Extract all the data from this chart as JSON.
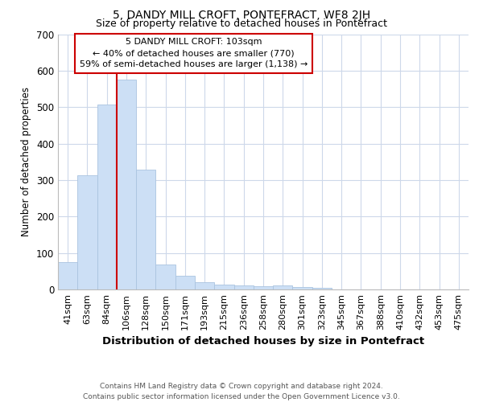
{
  "title": "5, DANDY MILL CROFT, PONTEFRACT, WF8 2JH",
  "subtitle": "Size of property relative to detached houses in Pontefract",
  "xlabel": "Distribution of detached houses by size in Pontefract",
  "ylabel": "Number of detached properties",
  "bar_labels": [
    "41sqm",
    "63sqm",
    "84sqm",
    "106sqm",
    "128sqm",
    "150sqm",
    "171sqm",
    "193sqm",
    "215sqm",
    "236sqm",
    "258sqm",
    "280sqm",
    "301sqm",
    "323sqm",
    "345sqm",
    "367sqm",
    "388sqm",
    "410sqm",
    "432sqm",
    "453sqm",
    "475sqm"
  ],
  "bar_values": [
    75,
    312,
    506,
    575,
    328,
    68,
    37,
    20,
    14,
    10,
    8,
    12,
    7,
    5,
    0,
    0,
    0,
    0,
    0,
    0,
    0
  ],
  "bar_color": "#ccdff5",
  "bar_edge_color": "#aac4e0",
  "vline_index": 3,
  "vline_color": "#cc0000",
  "ylim": [
    0,
    700
  ],
  "yticks": [
    0,
    100,
    200,
    300,
    400,
    500,
    600,
    700
  ],
  "annotation_text": "5 DANDY MILL CROFT: 103sqm\n← 40% of detached houses are smaller (770)\n59% of semi-detached houses are larger (1,138) →",
  "annotation_box_color": "#ffffff",
  "annotation_box_edge": "#cc0000",
  "footer_line1": "Contains HM Land Registry data © Crown copyright and database right 2024.",
  "footer_line2": "Contains public sector information licensed under the Open Government Licence v3.0.",
  "background_color": "#ffffff",
  "grid_color": "#cdd8ea"
}
